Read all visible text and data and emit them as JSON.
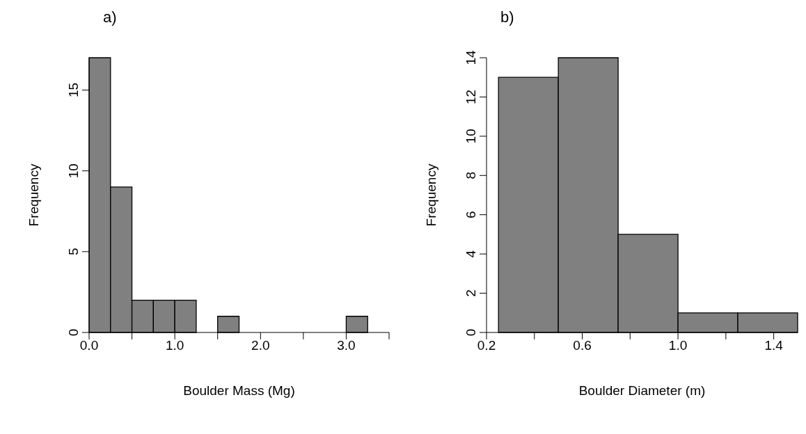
{
  "chart_data": [
    {
      "type": "histogram",
      "title": "a)",
      "xlabel": "Boulder Mass (Mg)",
      "ylabel": "Frequency",
      "bins": [
        0,
        0.25,
        0.5,
        0.75,
        1.0,
        1.25,
        1.5,
        1.75,
        2.0,
        2.25,
        2.5,
        2.75,
        3.0,
        3.25
      ],
      "values": [
        17,
        9,
        2,
        2,
        2,
        0,
        1,
        0,
        0,
        0,
        0,
        0,
        1
      ],
      "color": "#808080",
      "xlim": [
        0,
        3.5
      ],
      "xticks": [
        {
          "value": 0,
          "label": "0.0"
        },
        {
          "value": 0.5,
          "label": null
        },
        {
          "value": 1,
          "label": "1.0"
        },
        {
          "value": 1.5,
          "label": null
        },
        {
          "value": 2,
          "label": "2.0"
        },
        {
          "value": 2.5,
          "label": null
        },
        {
          "value": 3,
          "label": "3.0"
        },
        {
          "value": 3.5,
          "label": null
        }
      ],
      "ylim": [
        0,
        17
      ],
      "yticks": [
        0,
        5,
        10,
        15
      ]
    },
    {
      "type": "histogram",
      "title": "b)",
      "xlabel": "Boulder Diameter (m)",
      "ylabel": "Frequency",
      "bins": [
        0.25,
        0.5,
        0.75,
        1.0,
        1.25,
        1.5
      ],
      "values": [
        13,
        14,
        5,
        1,
        1
      ],
      "color": "#808080",
      "xlim": [
        0.2,
        1.5
      ],
      "xticks": [
        {
          "value": 0.2,
          "label": "0.2"
        },
        {
          "value": 0.4,
          "label": null
        },
        {
          "value": 0.6,
          "label": "0.6"
        },
        {
          "value": 0.8,
          "label": null
        },
        {
          "value": 1.0,
          "label": "1.0"
        },
        {
          "value": 1.2,
          "label": null
        },
        {
          "value": 1.4,
          "label": "1.4"
        }
      ],
      "ylim": [
        0,
        14
      ],
      "yticks": [
        0,
        2,
        4,
        6,
        8,
        10,
        12,
        14
      ]
    }
  ]
}
